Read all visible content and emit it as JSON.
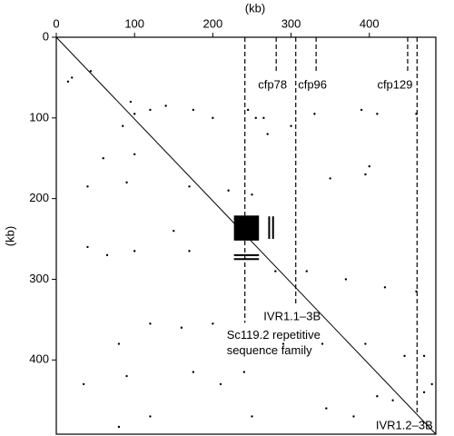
{
  "chart_data": {
    "type": "dotplot",
    "x_label": "(kb)",
    "y_label": "(kb)",
    "xlim": [
      0,
      485
    ],
    "ylim": [
      0,
      492
    ],
    "xticks": [
      0,
      100,
      200,
      300,
      400
    ],
    "yticks": [
      0,
      100,
      200,
      300,
      400
    ],
    "color": "#000000",
    "diagonal": {
      "x": [
        0,
        485
      ],
      "y": [
        0,
        492
      ]
    },
    "blocks": [
      {
        "x": [
          227,
          259
        ],
        "y": [
          221,
          252
        ]
      }
    ],
    "segments": [
      {
        "x": [
          272,
          272
        ],
        "y": [
          222,
          250
        ]
      },
      {
        "x": [
          277,
          277
        ],
        "y": [
          222,
          250
        ]
      },
      {
        "x": [
          227,
          259
        ],
        "y": [
          270,
          270
        ]
      },
      {
        "x": [
          227,
          259
        ],
        "y": [
          275,
          275
        ]
      }
    ],
    "points": {
      "x": [
        95,
        100,
        85,
        120,
        140,
        175,
        200,
        245,
        255,
        265,
        270,
        300,
        330,
        390,
        410,
        460,
        20,
        15,
        60,
        100,
        40,
        90,
        170,
        220,
        250,
        350,
        395,
        400,
        65,
        100,
        40,
        170,
        280,
        320,
        370,
        420,
        460,
        150,
        120,
        160,
        200,
        80,
        90,
        35,
        175,
        210,
        240,
        290,
        340,
        395,
        445,
        470,
        470,
        430,
        345,
        380,
        410,
        120,
        80,
        250,
        480,
        44
      ],
      "y": [
        80,
        95,
        110,
        90,
        85,
        90,
        100,
        90,
        100,
        100,
        120,
        110,
        95,
        90,
        95,
        95,
        50,
        55,
        150,
        145,
        185,
        180,
        185,
        190,
        195,
        175,
        170,
        160,
        270,
        265,
        260,
        265,
        290,
        290,
        300,
        310,
        315,
        240,
        355,
        360,
        355,
        380,
        420,
        430,
        415,
        430,
        415,
        380,
        380,
        380,
        395,
        395,
        440,
        450,
        460,
        470,
        445,
        470,
        483,
        470,
        430,
        42
      ]
    },
    "annotations": [
      {
        "text": "cfp78",
        "x": 281,
        "y_end": 44
      },
      {
        "text": "cfp96",
        "x": 332,
        "y_end": 44
      },
      {
        "text": "cfp129",
        "x": 449,
        "y_end": 44
      },
      {
        "text": "IVR1.1–3B",
        "x": 306,
        "y_end": 331
      },
      {
        "text": "Sc119.2 repetitive",
        "text2": "sequence family",
        "x": 241,
        "y_end": 354
      },
      {
        "text": "IVR1.2–3B",
        "x": 461,
        "y_end": 466
      }
    ]
  }
}
